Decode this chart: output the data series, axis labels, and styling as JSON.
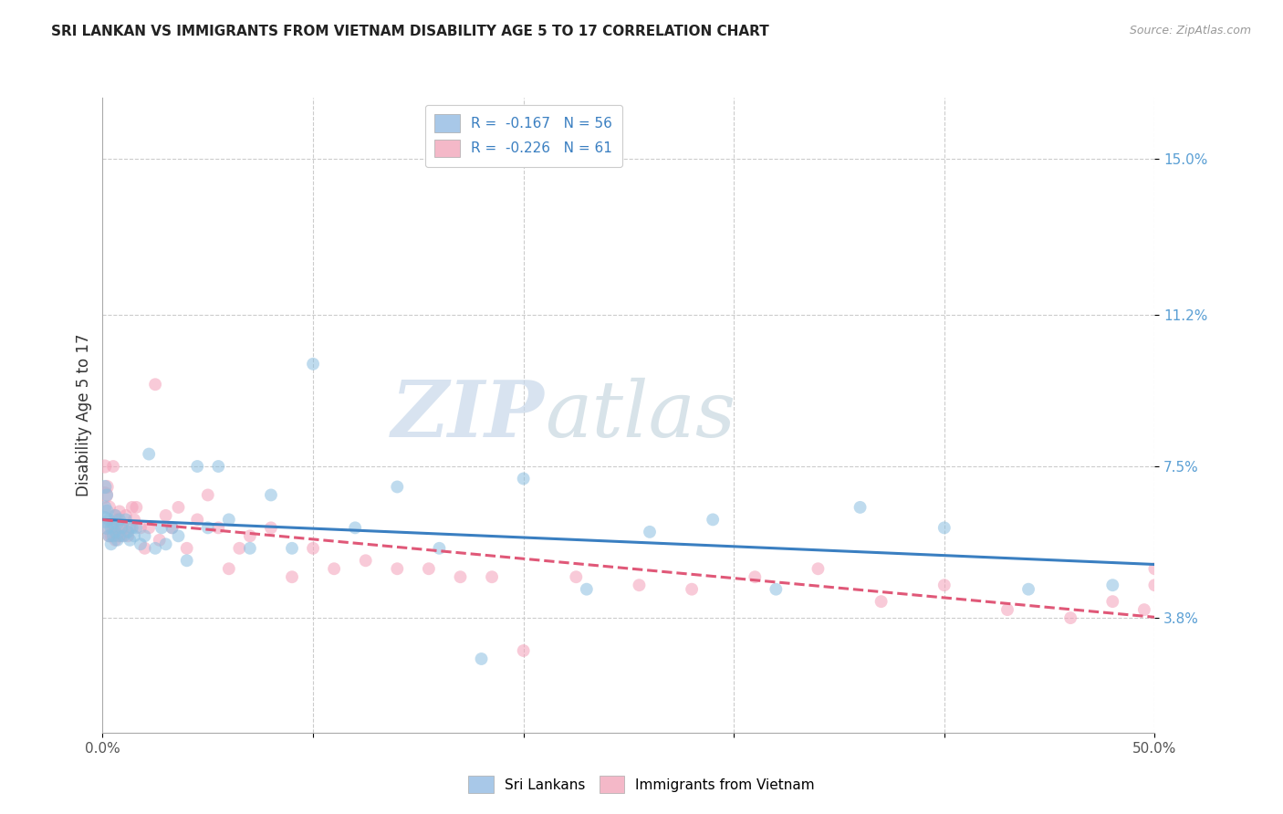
{
  "title": "SRI LANKAN VS IMMIGRANTS FROM VIETNAM DISABILITY AGE 5 TO 17 CORRELATION CHART",
  "source": "Source: ZipAtlas.com",
  "ylabel": "Disability Age 5 to 17",
  "xlim": [
    0.0,
    0.5
  ],
  "ylim": [
    0.01,
    0.165
  ],
  "ytick_positions": [
    0.038,
    0.075,
    0.112,
    0.15
  ],
  "ytick_labels": [
    "3.8%",
    "7.5%",
    "11.2%",
    "15.0%"
  ],
  "watermark_zip": "ZIP",
  "watermark_atlas": "atlas",
  "scatter_color_blue": "#8bbfe0",
  "scatter_color_pink": "#f4a0b8",
  "trend_color_blue": "#3a7fc1",
  "trend_color_pink": "#e05878",
  "background_color": "#ffffff",
  "grid_color": "#cccccc",
  "right_tick_color": "#5a9fd4",
  "sri_lanka_x": [
    0.001,
    0.001,
    0.001,
    0.002,
    0.002,
    0.002,
    0.003,
    0.003,
    0.004,
    0.004,
    0.005,
    0.005,
    0.006,
    0.006,
    0.007,
    0.007,
    0.008,
    0.008,
    0.009,
    0.01,
    0.011,
    0.012,
    0.013,
    0.014,
    0.015,
    0.016,
    0.018,
    0.02,
    0.022,
    0.025,
    0.028,
    0.03,
    0.033,
    0.036,
    0.04,
    0.045,
    0.05,
    0.055,
    0.06,
    0.07,
    0.08,
    0.09,
    0.1,
    0.12,
    0.14,
    0.16,
    0.18,
    0.2,
    0.23,
    0.26,
    0.29,
    0.32,
    0.36,
    0.4,
    0.44,
    0.48
  ],
  "sri_lanka_y": [
    0.062,
    0.065,
    0.07,
    0.06,
    0.064,
    0.068,
    0.058,
    0.062,
    0.056,
    0.06,
    0.061,
    0.058,
    0.059,
    0.063,
    0.057,
    0.061,
    0.058,
    0.062,
    0.06,
    0.058,
    0.062,
    0.059,
    0.057,
    0.06,
    0.058,
    0.06,
    0.056,
    0.058,
    0.078,
    0.055,
    0.06,
    0.056,
    0.06,
    0.058,
    0.052,
    0.075,
    0.06,
    0.075,
    0.062,
    0.055,
    0.068,
    0.055,
    0.1,
    0.06,
    0.07,
    0.055,
    0.028,
    0.072,
    0.045,
    0.059,
    0.062,
    0.045,
    0.065,
    0.06,
    0.045,
    0.046
  ],
  "vietnam_x": [
    0.001,
    0.001,
    0.002,
    0.002,
    0.003,
    0.003,
    0.004,
    0.005,
    0.005,
    0.006,
    0.006,
    0.007,
    0.007,
    0.008,
    0.008,
    0.009,
    0.01,
    0.011,
    0.012,
    0.013,
    0.014,
    0.015,
    0.016,
    0.018,
    0.02,
    0.022,
    0.025,
    0.027,
    0.03,
    0.033,
    0.036,
    0.04,
    0.045,
    0.05,
    0.055,
    0.06,
    0.065,
    0.07,
    0.08,
    0.09,
    0.1,
    0.11,
    0.125,
    0.14,
    0.155,
    0.17,
    0.185,
    0.2,
    0.225,
    0.255,
    0.28,
    0.31,
    0.34,
    0.37,
    0.4,
    0.43,
    0.46,
    0.48,
    0.495,
    0.5,
    0.5
  ],
  "vietnam_y": [
    0.068,
    0.075,
    0.07,
    0.06,
    0.065,
    0.058,
    0.058,
    0.075,
    0.06,
    0.063,
    0.057,
    0.058,
    0.062,
    0.06,
    0.064,
    0.058,
    0.06,
    0.063,
    0.058,
    0.06,
    0.065,
    0.062,
    0.065,
    0.06,
    0.055,
    0.06,
    0.095,
    0.057,
    0.063,
    0.06,
    0.065,
    0.055,
    0.062,
    0.068,
    0.06,
    0.05,
    0.055,
    0.058,
    0.06,
    0.048,
    0.055,
    0.05,
    0.052,
    0.05,
    0.05,
    0.048,
    0.048,
    0.03,
    0.048,
    0.046,
    0.045,
    0.048,
    0.05,
    0.042,
    0.046,
    0.04,
    0.038,
    0.042,
    0.04,
    0.046,
    0.05
  ],
  "sl_sizes": [
    180,
    120,
    120,
    120,
    120,
    100,
    100,
    100,
    100,
    100,
    100,
    100,
    100,
    100,
    100,
    100,
    100,
    100,
    100,
    100,
    100,
    100,
    100,
    100,
    100,
    100,
    100,
    100,
    100,
    100,
    100,
    100,
    100,
    100,
    100,
    100,
    100,
    100,
    100,
    100,
    100,
    100,
    100,
    100,
    100,
    100,
    100,
    100,
    100,
    100,
    100,
    100,
    100,
    100,
    100,
    100
  ],
  "vn_sizes": [
    180,
    120,
    120,
    120,
    120,
    100,
    100,
    100,
    100,
    100,
    100,
    100,
    100,
    100,
    100,
    100,
    100,
    100,
    100,
    100,
    100,
    100,
    100,
    100,
    100,
    100,
    100,
    100,
    100,
    100,
    100,
    100,
    100,
    100,
    100,
    100,
    100,
    100,
    100,
    100,
    100,
    100,
    100,
    100,
    100,
    100,
    100,
    100,
    100,
    100,
    100,
    100,
    100,
    100,
    100,
    100,
    100,
    100,
    100,
    100,
    100
  ]
}
